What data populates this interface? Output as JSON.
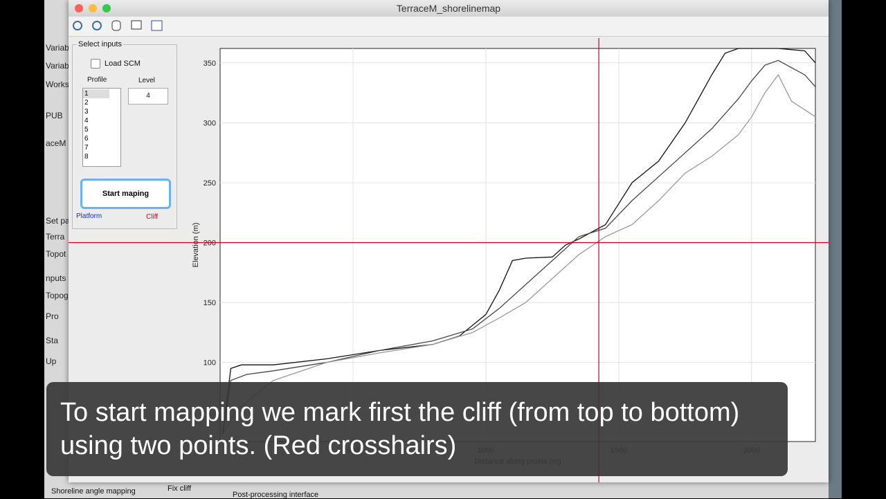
{
  "window": {
    "title": "TerraceM_shorelinemap"
  },
  "panel": {
    "group": "Select inputs",
    "load": "Load SCM",
    "profile_label": "Profile",
    "level_label": "Level",
    "profiles": [
      "1",
      "2",
      "3",
      "4",
      "5",
      "6",
      "7",
      "8"
    ],
    "level": "4",
    "button": "Start maping",
    "platform": "Platform",
    "cliff": "Cliff"
  },
  "background": {
    "tab1": "Shoreline angle mapping",
    "tab2": "Fix cliff",
    "tab3": "Post-processing interface",
    "left": [
      "Variabl",
      "Variab",
      "Works",
      "PUB",
      "aceM M",
      "Set pa",
      "Terra",
      "Topot",
      "nputs in",
      "Topog",
      "Pro",
      "Sta",
      "Up"
    ]
  },
  "chart_data": {
    "type": "line",
    "x_label": "Distance along profile (m)",
    "y_label": "Elevation (m)",
    "xlim": [
      0,
      2240
    ],
    "ylim": [
      34,
      362
    ],
    "xticks": [
      500,
      1000,
      1500,
      2000
    ],
    "yticks": [
      100,
      150,
      200,
      250,
      300,
      350
    ],
    "grid": true,
    "crosshair": {
      "x": 1425,
      "y": 200,
      "color": "#d0021b"
    },
    "series": [
      {
        "color": "#111111",
        "x": [
          10,
          40,
          80,
          200,
          400,
          600,
          800,
          900,
          1000,
          1050,
          1100,
          1150,
          1250,
          1300,
          1350,
          1450,
          1550,
          1650,
          1750,
          1850,
          1900,
          1950,
          2000,
          2100,
          2200,
          2240
        ],
        "values": [
          40,
          95,
          98,
          98,
          103,
          110,
          115,
          122,
          140,
          160,
          185,
          187,
          188,
          198,
          203,
          215,
          250,
          268,
          300,
          340,
          358,
          362,
          362,
          362,
          360,
          350
        ]
      },
      {
        "color": "#444444",
        "x": [
          10,
          40,
          100,
          200,
          400,
          600,
          800,
          950,
          1050,
          1150,
          1250,
          1350,
          1450,
          1550,
          1650,
          1750,
          1850,
          1950,
          2000,
          2050,
          2100,
          2200,
          2240
        ],
        "values": [
          40,
          85,
          90,
          93,
          100,
          110,
          118,
          128,
          145,
          165,
          185,
          205,
          212,
          235,
          255,
          275,
          295,
          320,
          335,
          348,
          352,
          340,
          330
        ]
      },
      {
        "color": "#999999",
        "x": [
          10,
          60,
          200,
          400,
          600,
          800,
          950,
          1050,
          1150,
          1250,
          1350,
          1450,
          1550,
          1650,
          1750,
          1850,
          1950,
          2000,
          2050,
          2100,
          2150,
          2240
        ],
        "values": [
          40,
          60,
          85,
          100,
          108,
          115,
          125,
          137,
          150,
          170,
          190,
          205,
          215,
          235,
          258,
          272,
          290,
          305,
          325,
          340,
          318,
          305
        ]
      }
    ]
  },
  "caption": "To start mapping we mark first the cliff (from top to bottom) using two points. (Red crosshairs)"
}
